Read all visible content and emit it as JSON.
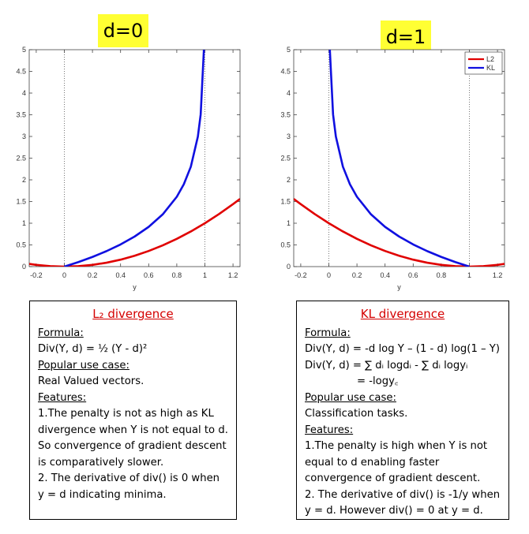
{
  "panels": [
    {
      "title": "d=0"
    },
    {
      "title": "d=1"
    }
  ],
  "chart_data": [
    {
      "type": "line",
      "title": "d=0",
      "xlabel": "y",
      "ylabel": "",
      "xlim": [
        -0.25,
        1.25
      ],
      "ylim": [
        0,
        5
      ],
      "xticks": [
        "-0.2",
        "0",
        "0.2",
        "0.4",
        "0.6",
        "0.8",
        "1",
        "1.2"
      ],
      "yticks": [
        "0",
        "0.5",
        "1",
        "1.5",
        "2",
        "2.5",
        "3",
        "3.5",
        "4",
        "4.5",
        "5"
      ],
      "reference_lines_x": [
        0,
        1
      ],
      "series": [
        {
          "name": "L2",
          "color": "#e00000",
          "x": [
            -0.25,
            -0.2,
            -0.1,
            0,
            0.1,
            0.2,
            0.3,
            0.4,
            0.5,
            0.6,
            0.7,
            0.8,
            0.9,
            1.0,
            1.1,
            1.2,
            1.25
          ],
          "y": [
            0.063,
            0.04,
            0.01,
            0,
            0.01,
            0.04,
            0.09,
            0.16,
            0.25,
            0.36,
            0.49,
            0.64,
            0.81,
            1.0,
            1.21,
            1.44,
            1.56
          ]
        },
        {
          "name": "KL",
          "color": "#1010e0",
          "x": [
            0,
            0.1,
            0.2,
            0.3,
            0.4,
            0.5,
            0.6,
            0.7,
            0.8,
            0.85,
            0.9,
            0.95,
            0.97,
            0.993
          ],
          "y": [
            0,
            0.105,
            0.223,
            0.357,
            0.511,
            0.693,
            0.916,
            1.204,
            1.609,
            1.897,
            2.303,
            2.996,
            3.507,
            5.0
          ]
        }
      ]
    },
    {
      "type": "line",
      "title": "d=1",
      "xlabel": "y",
      "ylabel": "",
      "xlim": [
        -0.25,
        1.25
      ],
      "ylim": [
        0,
        5
      ],
      "xticks": [
        "-0.2",
        "0",
        "0.2",
        "0.4",
        "0.6",
        "0.8",
        "1",
        "1.2"
      ],
      "yticks": [
        "0",
        "0.5",
        "1",
        "1.5",
        "2",
        "2.5",
        "3",
        "3.5",
        "4",
        "4.5",
        "5"
      ],
      "reference_lines_x": [
        0,
        1
      ],
      "legend": {
        "placement": "top-right",
        "entries": [
          "L2",
          "KL"
        ]
      },
      "series": [
        {
          "name": "L2",
          "color": "#e00000",
          "x": [
            -0.25,
            -0.2,
            -0.1,
            0,
            0.1,
            0.2,
            0.3,
            0.4,
            0.5,
            0.6,
            0.7,
            0.8,
            0.9,
            1.0,
            1.1,
            1.2,
            1.25
          ],
          "y": [
            1.56,
            1.44,
            1.21,
            1.0,
            0.81,
            0.64,
            0.49,
            0.36,
            0.25,
            0.16,
            0.09,
            0.04,
            0.01,
            0,
            0.01,
            0.04,
            0.063
          ]
        },
        {
          "name": "KL",
          "color": "#1010e0",
          "x": [
            0.007,
            0.03,
            0.05,
            0.1,
            0.15,
            0.2,
            0.3,
            0.4,
            0.5,
            0.6,
            0.7,
            0.8,
            0.9,
            1.0
          ],
          "y": [
            5.0,
            3.507,
            2.996,
            2.303,
            1.897,
            1.609,
            1.204,
            0.916,
            0.693,
            0.511,
            0.357,
            0.223,
            0.105,
            0
          ]
        }
      ]
    }
  ],
  "left_box": {
    "title": "L₂ divergence",
    "formula_label": "Formula:",
    "formula": "Div(Y, d) = ½ (Y - d)²",
    "use_case_label": "Popular use case:",
    "use_case": "Real Valued vectors.",
    "features_label": "Features:",
    "feature_1": "1.The penalty is not as high as KL divergence when Y is not equal to d. So convergence of gradient descent is comparatively slower.",
    "feature_2": "2. The derivative of div() is 0 when y = d indicating minima."
  },
  "right_box": {
    "title": "KL divergence",
    "formula_label": "Formula:",
    "formula_1": "Div(Y, d) = -d log Y – (1 - d) log(1 – Y)",
    "formula_2": "Div(Y, d) = ∑ dᵢ logdᵢ - ∑ dᵢ logyᵢ",
    "formula_3": "= -logy꜀",
    "use_case_label": "Popular use case:",
    "use_case": "Classification tasks.",
    "features_label": "Features:",
    "feature_1": "1.The penalty is high when Y is not equal to d enabling faster convergence of gradient descent.",
    "feature_2": "2. The derivative of div() is -1/y when y = d. However div() = 0 at y = d."
  }
}
